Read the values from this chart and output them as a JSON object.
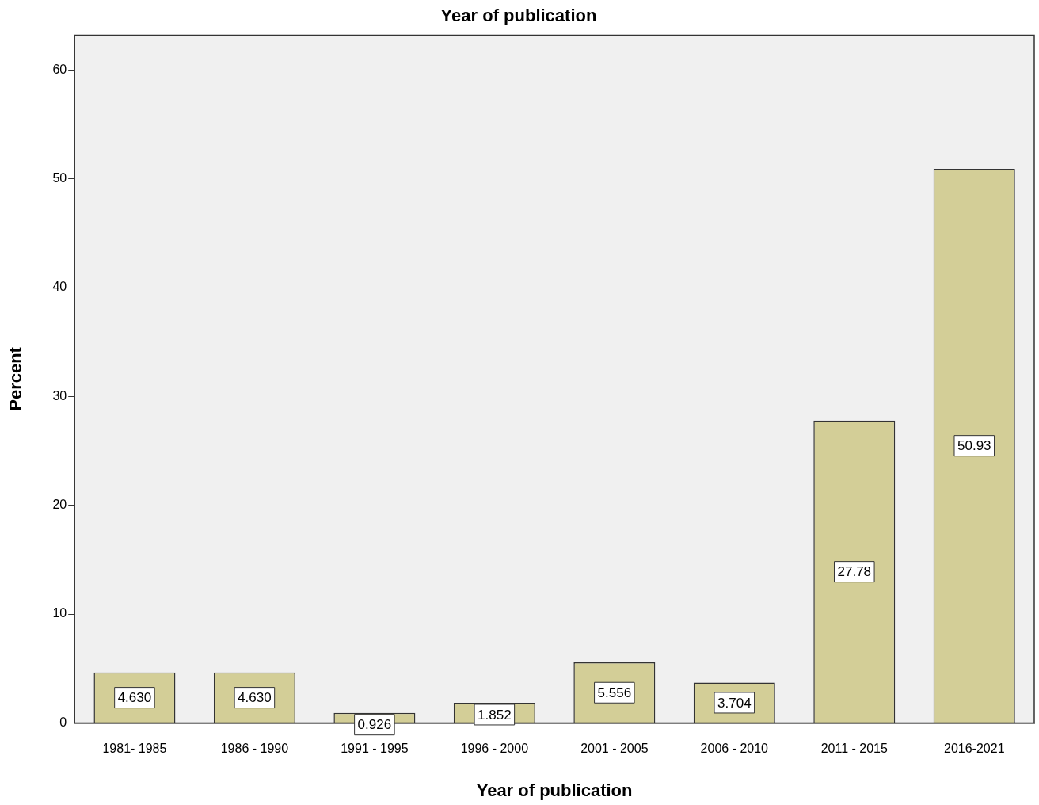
{
  "chart_data": {
    "type": "bar",
    "title": "Year of publication",
    "xlabel": "Year of publication",
    "ylabel": "Percent",
    "categories": [
      "1981- 1985",
      "1986 - 1990",
      "1991 - 1995",
      "1996 - 2000",
      "2001 - 2005",
      "2006 - 2010",
      "2011 - 2015",
      "2016-2021"
    ],
    "values": [
      4.63,
      4.63,
      0.926,
      1.852,
      5.556,
      3.704,
      27.78,
      50.93
    ],
    "value_labels": [
      "4.630",
      "4.630",
      "0.926",
      "1.852",
      "5.556",
      "3.704",
      "27.78",
      "50.93"
    ],
    "color": "#d3ce97",
    "ylim": [
      0,
      63.2
    ],
    "yticks": [
      0,
      10,
      20,
      30,
      40,
      50,
      60
    ],
    "grid": false,
    "legend": false
  }
}
